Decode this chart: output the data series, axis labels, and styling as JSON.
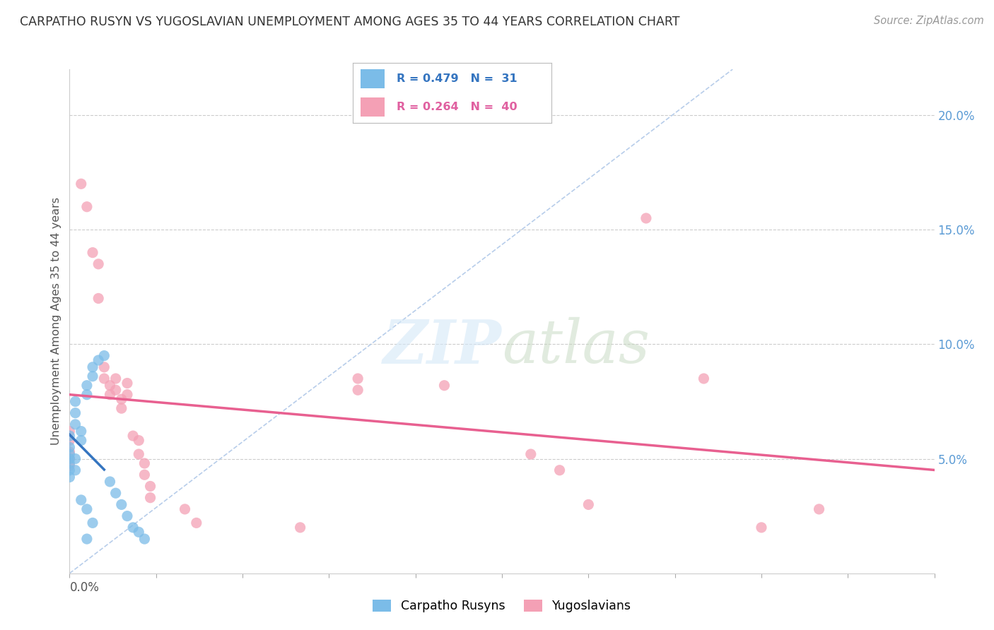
{
  "title": "CARPATHO RUSYN VS YUGOSLAVIAN UNEMPLOYMENT AMONG AGES 35 TO 44 YEARS CORRELATION CHART",
  "source": "Source: ZipAtlas.com",
  "ylabel": "Unemployment Among Ages 35 to 44 years",
  "right_yticks": [
    "20.0%",
    "15.0%",
    "10.0%",
    "5.0%"
  ],
  "right_ytick_vals": [
    0.2,
    0.15,
    0.1,
    0.05
  ],
  "xlim": [
    0.0,
    0.15
  ],
  "ylim": [
    0.0,
    0.22
  ],
  "carpatho_color": "#7bbce8",
  "yugoslavian_color": "#f4a0b5",
  "carpatho_line_color": "#3575c0",
  "yugoslavian_line_color": "#e86090",
  "carpatho_points": [
    [
      0.0,
      0.06
    ],
    [
      0.0,
      0.055
    ],
    [
      0.0,
      0.05
    ],
    [
      0.0,
      0.048
    ],
    [
      0.0,
      0.052
    ],
    [
      0.0,
      0.045
    ],
    [
      0.0,
      0.042
    ],
    [
      0.001,
      0.075
    ],
    [
      0.001,
      0.07
    ],
    [
      0.001,
      0.065
    ],
    [
      0.001,
      0.05
    ],
    [
      0.002,
      0.062
    ],
    [
      0.002,
      0.058
    ],
    [
      0.003,
      0.082
    ],
    [
      0.003,
      0.078
    ],
    [
      0.004,
      0.09
    ],
    [
      0.004,
      0.086
    ],
    [
      0.005,
      0.093
    ],
    [
      0.006,
      0.095
    ],
    [
      0.007,
      0.04
    ],
    [
      0.008,
      0.035
    ],
    [
      0.009,
      0.03
    ],
    [
      0.01,
      0.025
    ],
    [
      0.011,
      0.02
    ],
    [
      0.012,
      0.018
    ],
    [
      0.013,
      0.015
    ],
    [
      0.001,
      0.045
    ],
    [
      0.002,
      0.032
    ],
    [
      0.003,
      0.028
    ],
    [
      0.004,
      0.022
    ],
    [
      0.003,
      0.015
    ]
  ],
  "yugoslavian_points": [
    [
      0.0,
      0.062
    ],
    [
      0.0,
      0.058
    ],
    [
      0.0,
      0.053
    ],
    [
      0.0,
      0.05
    ],
    [
      0.0,
      0.047
    ],
    [
      0.002,
      0.17
    ],
    [
      0.003,
      0.16
    ],
    [
      0.004,
      0.14
    ],
    [
      0.005,
      0.135
    ],
    [
      0.005,
      0.12
    ],
    [
      0.006,
      0.09
    ],
    [
      0.006,
      0.085
    ],
    [
      0.007,
      0.082
    ],
    [
      0.007,
      0.078
    ],
    [
      0.008,
      0.085
    ],
    [
      0.008,
      0.08
    ],
    [
      0.009,
      0.076
    ],
    [
      0.009,
      0.072
    ],
    [
      0.01,
      0.083
    ],
    [
      0.01,
      0.078
    ],
    [
      0.011,
      0.06
    ],
    [
      0.012,
      0.058
    ],
    [
      0.012,
      0.052
    ],
    [
      0.013,
      0.048
    ],
    [
      0.013,
      0.043
    ],
    [
      0.014,
      0.038
    ],
    [
      0.014,
      0.033
    ],
    [
      0.02,
      0.028
    ],
    [
      0.022,
      0.022
    ],
    [
      0.04,
      0.02
    ],
    [
      0.05,
      0.085
    ],
    [
      0.05,
      0.08
    ],
    [
      0.065,
      0.082
    ],
    [
      0.08,
      0.052
    ],
    [
      0.085,
      0.045
    ],
    [
      0.09,
      0.03
    ],
    [
      0.1,
      0.155
    ],
    [
      0.11,
      0.085
    ],
    [
      0.12,
      0.02
    ],
    [
      0.13,
      0.028
    ]
  ]
}
